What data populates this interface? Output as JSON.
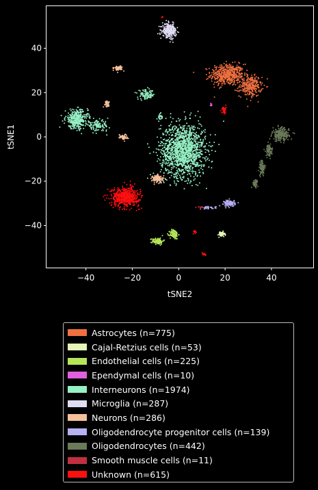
{
  "chart_data": {
    "type": "scatter",
    "title": "",
    "xlabel": "tSNE2",
    "ylabel": "tSNE1",
    "xlim": [
      -57,
      58
    ],
    "ylim": [
      -59,
      59
    ],
    "xticks": [
      -40,
      -20,
      0,
      20,
      40
    ],
    "yticks": [
      -40,
      -20,
      0,
      20,
      40
    ],
    "xtick_labels": [
      "−40",
      "−20",
      "0",
      "20",
      "40"
    ],
    "ytick_labels": [
      "−40",
      "−20",
      "0",
      "20",
      "40"
    ],
    "grid": false,
    "legend_position": "below",
    "series": [
      {
        "name": "Astrocytes (n=775)",
        "color": "#f07040",
        "count": 775,
        "clusters": [
          [
            21,
            28,
            6,
            4,
            500
          ],
          [
            31,
            23,
            4,
            4,
            275
          ]
        ]
      },
      {
        "name": "Cajal-Retzius cells (n=53)",
        "color": "#e4f5b8",
        "count": 53,
        "clusters": [
          [
            18.5,
            -44,
            1.2,
            1,
            53
          ]
        ]
      },
      {
        "name": "Endothelial cells (n=225)",
        "color": "#b5e65a",
        "count": 225,
        "clusters": [
          [
            -9,
            -47,
            2,
            1.2,
            110
          ],
          [
            -2,
            -44,
            1.5,
            1.8,
            115
          ]
        ]
      },
      {
        "name": "Ependymal cells (n=10)",
        "color": "#e060e0",
        "count": 10,
        "clusters": [
          [
            14,
            14.5,
            0.5,
            0.5,
            10
          ]
        ]
      },
      {
        "name": "Interneurons (n=1974)",
        "color": "#95f0c5",
        "count": 1974,
        "clusters": [
          [
            2,
            -6,
            8,
            10,
            1400
          ],
          [
            -44,
            8,
            4,
            3.5,
            350
          ],
          [
            -35,
            5,
            4,
            2,
            110
          ],
          [
            -14,
            19,
            3,
            1.8,
            90
          ],
          [
            -8,
            9,
            1,
            1.5,
            24
          ]
        ]
      },
      {
        "name": "Microglia (n=287)",
        "color": "#e0dcf2",
        "count": 287,
        "clusters": [
          [
            -4,
            48,
            2.5,
            2.5,
            287
          ]
        ]
      },
      {
        "name": "Neurons (n=286)",
        "color": "#f5c09a",
        "count": 286,
        "clusters": [
          [
            -26,
            31,
            1.5,
            1,
            60
          ],
          [
            -31,
            15,
            1,
            1,
            40
          ],
          [
            -24,
            0,
            1.5,
            1,
            60
          ],
          [
            -9,
            -19,
            2,
            1.5,
            126
          ]
        ]
      },
      {
        "name": "Oligodendrocyte progenitor cells (n=139)",
        "color": "#b7b0f2",
        "count": 139,
        "clusters": [
          [
            22,
            -30,
            2,
            1.2,
            110
          ],
          [
            13,
            -32,
            2.5,
            0.5,
            29
          ]
        ]
      },
      {
        "name": "Oligodendrocytes (n=442)",
        "color": "#6b7a58",
        "count": 442,
        "clusters": [
          [
            44,
            1,
            3,
            2.5,
            200
          ],
          [
            39,
            -6,
            1.2,
            2.2,
            80
          ],
          [
            36,
            -14,
            1,
            3,
            100
          ],
          [
            33,
            -21,
            1,
            1.5,
            62
          ]
        ]
      },
      {
        "name": "Smooth muscle cells (n=11)",
        "color": "#c03040",
        "count": 11,
        "clusters": [
          [
            9,
            -32,
            1.5,
            0.5,
            11
          ]
        ]
      },
      {
        "name": "Unknown (n=615)",
        "color": "#ff1010",
        "count": 615,
        "clusters": [
          [
            -23,
            -27,
            5,
            3.5,
            540
          ],
          [
            19.5,
            12,
            0.8,
            1.5,
            40
          ],
          [
            11,
            -53,
            0.6,
            0.6,
            10
          ],
          [
            7,
            -43,
            0.5,
            1,
            10
          ],
          [
            -7,
            54,
            0.3,
            0.3,
            5
          ],
          [
            -18,
            -29,
            0.5,
            0.5,
            10
          ]
        ]
      }
    ]
  }
}
